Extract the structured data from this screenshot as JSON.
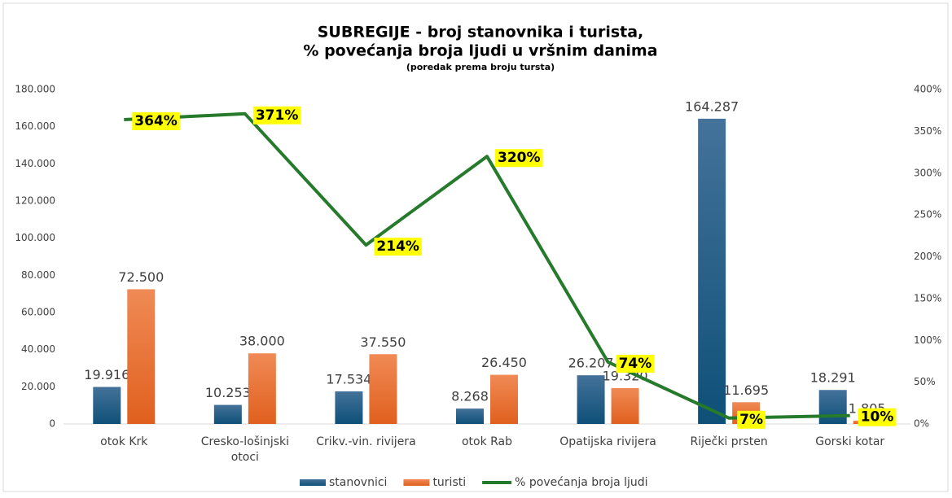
{
  "chart_data": {
    "type": "bar",
    "title": "SUBREGIJE - broj stanovnika i turista,",
    "title_line2": "% povećanja broja ljudi u vršnim danima",
    "subtitle": "(poredak prema broju tursta)",
    "categories": [
      "otok Krk",
      "Cresko-lošinjski otoci",
      "Crikv.-vin. rivijera",
      "otok Rab",
      "Opatijska rivijera",
      "Riječki prsten",
      "Gorski kotar"
    ],
    "series": [
      {
        "name": "stanovnici",
        "type": "bar",
        "color": "#1f6391",
        "values": [
          19916,
          10253,
          17534,
          8268,
          26207,
          164287,
          18291
        ],
        "value_labels": [
          "19.916",
          "10.253",
          "17.534",
          "8.268",
          "26.207",
          "164.287",
          "18.291"
        ]
      },
      {
        "name": "turisti",
        "type": "bar",
        "color": "#ed7d31",
        "values": [
          72500,
          38000,
          37550,
          26450,
          19320,
          11695,
          1805
        ],
        "value_labels": [
          "72.500",
          "38.000",
          "37.550",
          "26.450",
          "19.320",
          "11.695",
          "1.805"
        ]
      },
      {
        "name": "% povećanja broja ljudi",
        "type": "line",
        "axis": "y2",
        "color": "#267a2b",
        "values": [
          364,
          371,
          214,
          320,
          74,
          7,
          10
        ],
        "value_labels": [
          "364%",
          "371%",
          "214%",
          "320%",
          "74%",
          "7%",
          "10%"
        ]
      }
    ],
    "ylim": [
      0,
      180000
    ],
    "yticks": [
      0,
      {
        "value": 20000,
        "label": "20.000"
      },
      {
        "value": 40000,
        "label": "40.000"
      },
      {
        "value": 60000,
        "label": "60.000"
      },
      {
        "value": 80000,
        "label": "80.000"
      },
      {
        "value": 100000,
        "label": "100.000"
      },
      {
        "value": 120000,
        "label": "120.000"
      },
      {
        "value": 140000,
        "label": "140.000"
      },
      {
        "value": 160000,
        "label": "160.000"
      },
      {
        "value": 180000,
        "label": "180.000"
      }
    ],
    "y2lim": [
      0,
      400
    ],
    "y2ticks": [
      {
        "value": 0,
        "label": "0%"
      },
      {
        "value": 50,
        "label": "50%"
      },
      {
        "value": 100,
        "label": "100%"
      },
      {
        "value": 150,
        "label": "150%"
      },
      {
        "value": 200,
        "label": "200%"
      },
      {
        "value": 250,
        "label": "250%"
      },
      {
        "value": 300,
        "label": "300%"
      },
      {
        "value": 350,
        "label": "350%"
      },
      {
        "value": 400,
        "label": "400%"
      }
    ],
    "grid": false,
    "legend": "bottom"
  }
}
